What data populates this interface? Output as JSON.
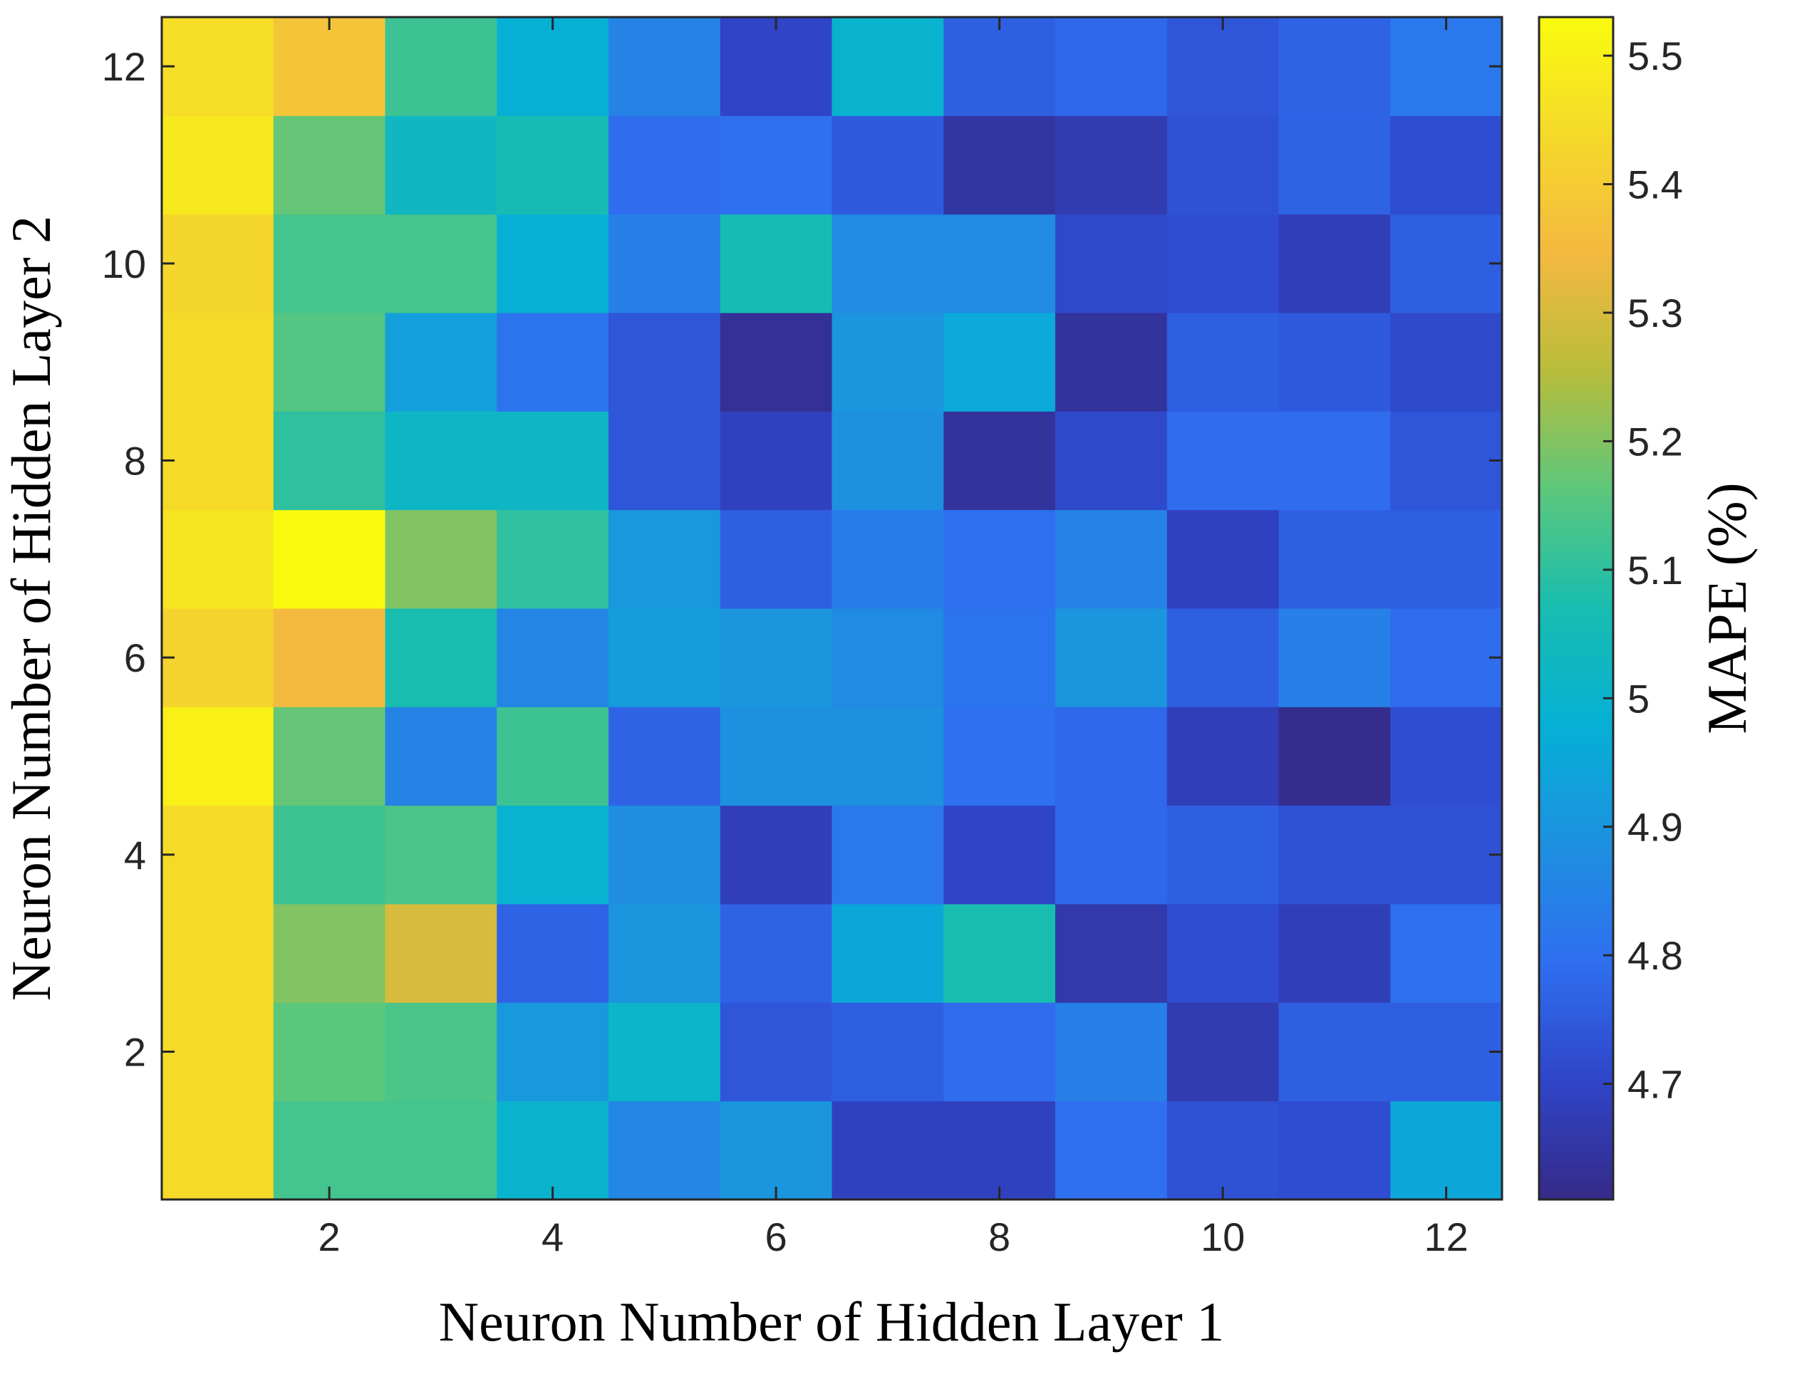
{
  "chart_data": {
    "type": "heatmap",
    "xlabel": "Neuron Number of Hidden Layer 1",
    "ylabel": "Neuron Number of Hidden Layer 2",
    "colorbar_label": "MAPE (%)",
    "colormap": "parula",
    "x": [
      1,
      2,
      3,
      4,
      5,
      6,
      7,
      8,
      9,
      10,
      11,
      12
    ],
    "y": [
      1,
      2,
      3,
      4,
      5,
      6,
      7,
      8,
      9,
      10,
      11,
      12
    ],
    "z": [
      [
        5.44,
        5.13,
        5.13,
        5.0,
        4.86,
        4.9,
        4.69,
        4.69,
        4.8,
        4.73,
        4.72,
        4.95
      ],
      [
        5.44,
        5.16,
        5.14,
        4.91,
        5.01,
        4.74,
        4.76,
        4.79,
        4.84,
        4.67,
        4.76,
        4.76
      ],
      [
        5.44,
        5.2,
        5.3,
        4.77,
        4.9,
        4.77,
        4.95,
        5.07,
        4.66,
        4.72,
        4.68,
        4.8
      ],
      [
        5.44,
        5.12,
        5.14,
        4.99,
        4.88,
        4.68,
        4.82,
        4.7,
        4.78,
        4.76,
        4.73,
        4.73
      ],
      [
        5.5,
        5.17,
        4.85,
        5.12,
        4.77,
        4.89,
        4.89,
        4.8,
        4.78,
        4.68,
        4.62,
        4.72
      ],
      [
        5.42,
        5.35,
        5.07,
        4.86,
        4.92,
        4.9,
        4.87,
        4.81,
        4.9,
        4.76,
        4.84,
        4.79
      ],
      [
        5.47,
        5.53,
        5.2,
        5.1,
        4.91,
        4.76,
        4.83,
        4.8,
        4.85,
        4.69,
        4.76,
        4.76
      ],
      [
        5.44,
        5.1,
        5.02,
        5.02,
        4.74,
        4.69,
        4.89,
        4.64,
        4.71,
        4.79,
        4.79,
        4.74
      ],
      [
        5.44,
        5.15,
        4.93,
        4.81,
        4.74,
        4.63,
        4.9,
        4.96,
        4.64,
        4.76,
        4.75,
        4.71
      ],
      [
        5.43,
        5.13,
        5.13,
        4.98,
        4.84,
        5.06,
        4.87,
        4.87,
        4.71,
        4.72,
        4.68,
        4.76
      ],
      [
        5.48,
        5.17,
        5.03,
        5.06,
        4.79,
        4.8,
        4.75,
        4.65,
        4.67,
        4.73,
        4.77,
        4.72
      ],
      [
        5.45,
        5.38,
        5.12,
        4.98,
        4.85,
        4.7,
        5.0,
        4.76,
        4.78,
        4.74,
        4.77,
        4.82
      ]
    ],
    "xlim": [
      0.5,
      12.5
    ],
    "xticks": [
      2,
      4,
      6,
      8,
      10,
      12
    ],
    "ylim": [
      0.5,
      12.5
    ],
    "yticks": [
      2,
      4,
      6,
      8,
      10,
      12
    ],
    "clim": [
      4.61,
      5.53
    ],
    "cticks": [
      4.7,
      4.8,
      4.9,
      5,
      5.1,
      5.2,
      5.3,
      5.4,
      5.5
    ]
  }
}
